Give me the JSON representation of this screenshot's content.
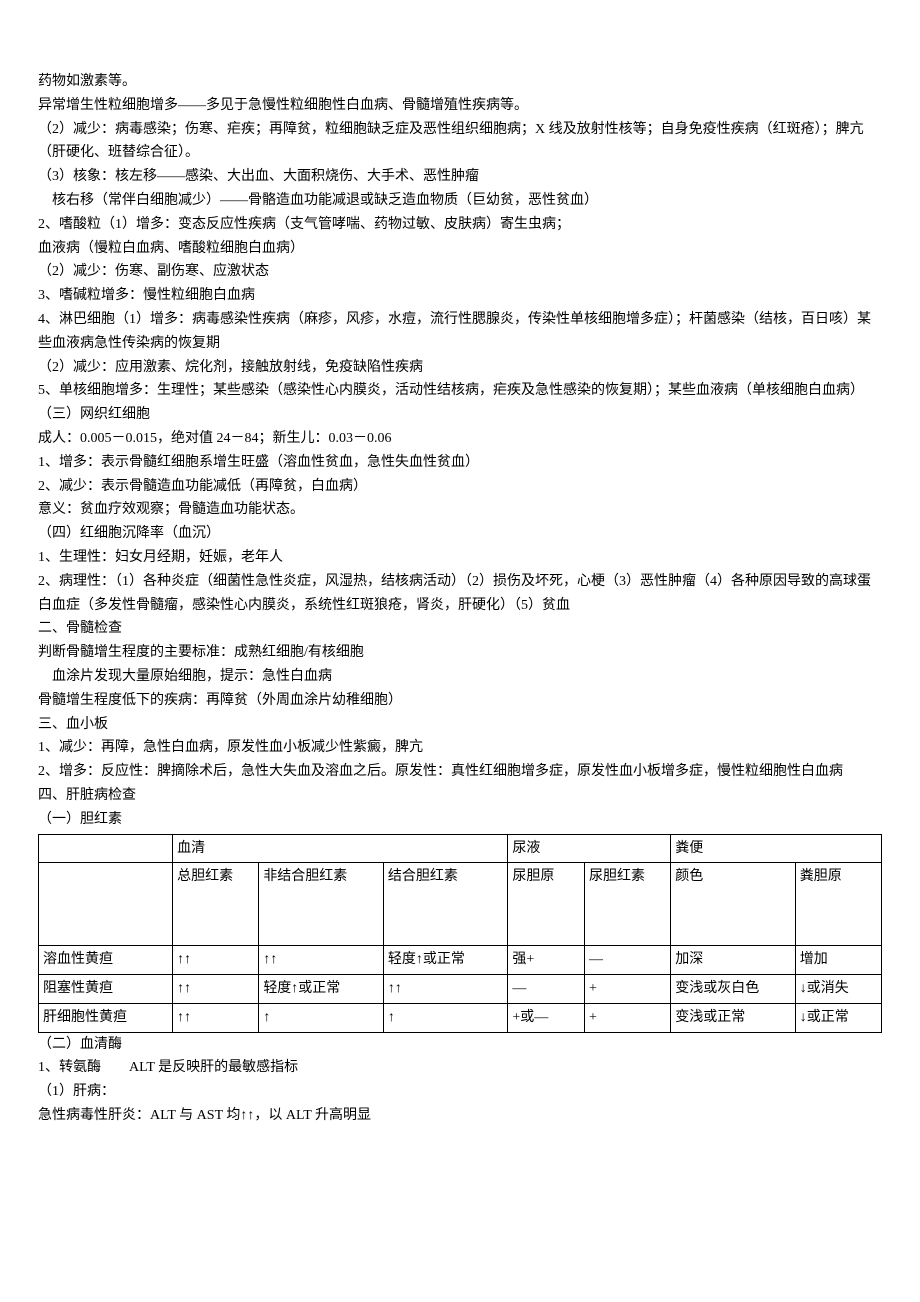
{
  "lines": [
    "药物如激素等。",
    "异常增生性粒细胞增多——多见于急慢性粒细胞性白血病、骨髓增殖性疾病等。",
    "（2）减少：病毒感染；伤寒、疟疾；再障贫，粒细胞缺乏症及恶性组织细胞病；X 线及放射性核等；自身免疫性疾病（红斑疮）；脾亢（肝硬化、班替综合征）。",
    "（3）核象：核左移——感染、大出血、大面积烧伤、大手术、恶性肿瘤",
    "　核右移（常伴白细胞减少）——骨骼造血功能减退或缺乏造血物质（巨幼贫，恶性贫血）",
    "2、嗜酸粒（1）增多：变态反应性疾病（支气管哮喘、药物过敏、皮肤病）寄生虫病；",
    "血液病（慢粒白血病、嗜酸粒细胞白血病）",
    "（2）减少：伤寒、副伤寒、应激状态",
    "3、嗜碱粒增多：慢性粒细胞白血病",
    "4、淋巴细胞（1）增多：病毒感染性疾病（麻疹，风疹，水痘，流行性腮腺炎，传染性单核细胞增多症）；杆菌感染（结核，百日咳）某些血液病急性传染病的恢复期",
    "（2）减少：应用激素、烷化剂，接触放射线，免疫缺陷性疾病",
    "5、单核细胞增多：生理性；某些感染（感染性心内膜炎，活动性结核病，疟疾及急性感染的恢复期）；某些血液病（单核细胞白血病）",
    "（三）网织红细胞",
    "成人：0.005－0.015，绝对值 24－84；新生儿：0.03－0.06",
    "1、增多：表示骨髓红细胞系增生旺盛（溶血性贫血，急性失血性贫血）",
    "2、减少：表示骨髓造血功能减低（再障贫，白血病）",
    "意义：贫血疗效观察；骨髓造血功能状态。",
    "（四）红细胞沉降率（血沉）",
    "1、生理性：妇女月经期，妊娠，老年人",
    "2、病理性：（1）各种炎症（细菌性急性炎症，风湿热，结核病活动）（2）损伤及坏死，心梗（3）恶性肿瘤（4）各种原因导致的高球蛋白血症（多发性骨髓瘤，感染性心内膜炎，系统性红斑狼疮，肾炎，肝硬化）（5）贫血",
    "二、骨髓检查",
    "判断骨髓增生程度的主要标准：成熟红细胞/有核细胞",
    "　血涂片发现大量原始细胞，提示：急性白血病",
    "骨髓增生程度低下的疾病：再障贫（外周血涂片幼稚细胞）",
    "三、血小板",
    "1、减少：再障，急性白血病，原发性血小板减少性紫癜，脾亢",
    "2、增多：反应性：脾摘除术后，急性大失血及溶血之后。原发性：真性红细胞增多症，原发性血小板增多症，慢性粒细胞性白血病",
    "四、肝脏病检查",
    "（一）胆红素"
  ],
  "table": {
    "header1": {
      "blank": "",
      "serum": "血清",
      "urine": "尿液",
      "stool": "粪便"
    },
    "header2": {
      "blank": "",
      "c1": "总胆红素",
      "c2": "非结合胆红素",
      "c3": "结合胆红素",
      "c4": "尿胆原",
      "c5": "尿胆红素",
      "c6": "颜色",
      "c7": "粪胆原"
    },
    "rows": [
      {
        "label": "溶血性黄疸",
        "c1": "↑↑",
        "c2": "↑↑",
        "c3": "轻度↑或正常",
        "c4": "强+",
        "c5": "—",
        "c6": "加深",
        "c7": "增加"
      },
      {
        "label": "阻塞性黄疸",
        "c1": "↑↑",
        "c2": "轻度↑或正常",
        "c3": "↑↑",
        "c4": "—",
        "c5": "+",
        "c6": "变浅或灰白色",
        "c7": "↓或消失"
      },
      {
        "label": "肝细胞性黄疸",
        "c1": "↑↑",
        "c2": "↑",
        "c3": "↑",
        "c4": "+或—",
        "c5": "+",
        "c6": "变浅或正常",
        "c7": "↓或正常"
      }
    ]
  },
  "after": [
    "（二）血清酶",
    "1、转氨酶　　ALT 是反映肝的最敏感指标",
    "（1）肝病：",
    "急性病毒性肝炎：ALT 与 AST 均↑↑，以 ALT 升高明显"
  ]
}
